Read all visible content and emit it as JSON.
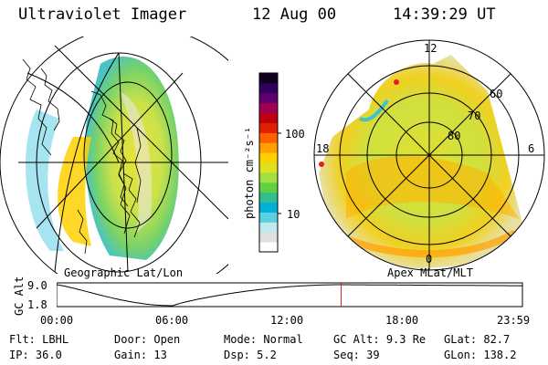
{
  "header": {
    "instrument": "Ultraviolet Imager",
    "date": "12 Aug 00",
    "time": "14:39:29 UT"
  },
  "panels": {
    "left_caption": "Geographic Lat/Lon",
    "right_caption": "Apex MLat/MLT"
  },
  "colorbar": {
    "unit_label": "photon cm⁻²s⁻¹",
    "tick_labels": [
      "100",
      "10"
    ],
    "colors": [
      "#ffffff",
      "#e0e0e0",
      "#c0e8f0",
      "#5ad0e0",
      "#00b0d8",
      "#30c090",
      "#60d040",
      "#a0e040",
      "#e0e020",
      "#ffd000",
      "#ffa000",
      "#ff6000",
      "#e02000",
      "#c00010",
      "#a00050",
      "#600070",
      "#300060",
      "#100020"
    ]
  },
  "polar_labels": {
    "mlt": [
      "12",
      "18",
      "6",
      "0"
    ],
    "mlat": [
      "60",
      "70",
      "80"
    ]
  },
  "altitude_plot": {
    "ylabel": "GC Alt",
    "y_ticks": [
      "9.0",
      "1.8"
    ],
    "x_ticks": [
      "00:00",
      "06:00",
      "12:00",
      "18:00",
      "23:59"
    ],
    "marker_hours": 14.66,
    "line_color": "#d02020"
  },
  "status": {
    "row1": [
      {
        "label": "Flt:",
        "value": "LBHL"
      },
      {
        "label": "Door:",
        "value": "Open"
      },
      {
        "label": "Mode:",
        "value": "Normal"
      },
      {
        "label": "GC Alt:",
        "value": "9.3 Re"
      },
      {
        "label": "GLat:",
        "value": "82.7"
      }
    ],
    "row2": [
      {
        "label": "IP:",
        "value": "36.0"
      },
      {
        "label": "Gain:",
        "value": "13"
      },
      {
        "label": "Dsp:",
        "value": "5.2"
      },
      {
        "label": "Seq:",
        "value": "39"
      },
      {
        "label": "GLon:",
        "value": "138.2"
      }
    ]
  }
}
